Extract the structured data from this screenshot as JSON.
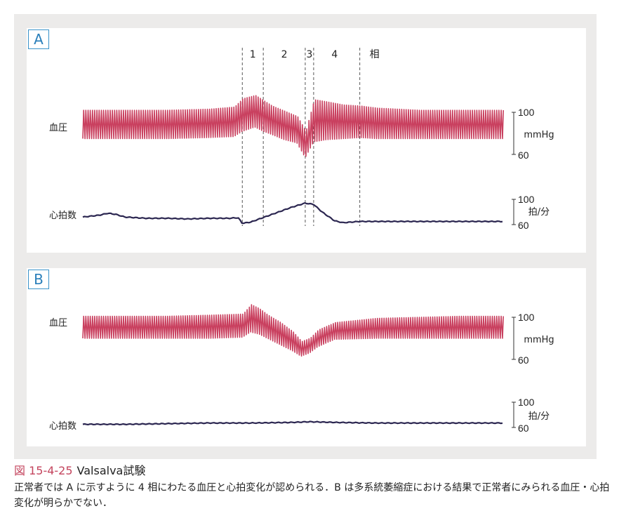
{
  "figure": {
    "number": "図 15-4-25",
    "title": "Valsalva試験",
    "caption": "正常者では A に示すように 4 相にわたる血圧と心拍変化が認められる．B は多系統萎縮症における結果で正常者にみられる血圧・心拍変化が明らかでない．"
  },
  "colors": {
    "bp_trace": "#c9405f",
    "hr_trace": "#2b2650",
    "accent": "#2a7fba",
    "caption_number": "#c4455e",
    "background": "#ecebea"
  },
  "chart_data": [
    {
      "type": "line",
      "panel": "A",
      "phase_labels": [
        "1",
        "2",
        "3",
        "4",
        "相"
      ],
      "phase_markers_x": [
        0.38,
        0.43,
        0.53,
        0.55,
        0.66
      ],
      "series": [
        {
          "name": "血圧",
          "units": "mmHg",
          "y_ticks": [
            "100",
            "60"
          ],
          "x": [
            0.0,
            0.1,
            0.2,
            0.3,
            0.36,
            0.38,
            0.41,
            0.43,
            0.45,
            0.48,
            0.51,
            0.53,
            0.55,
            0.58,
            0.62,
            0.66,
            0.7,
            0.8,
            0.9,
            1.0
          ],
          "systolic": [
            102,
            102,
            102,
            103,
            105,
            113,
            116,
            111,
            106,
            101,
            96,
            82,
            112,
            110,
            107,
            106,
            104,
            102,
            102,
            102
          ],
          "diastolic": [
            75,
            75,
            75,
            76,
            77,
            82,
            86,
            82,
            79,
            74,
            71,
            57,
            72,
            74,
            75,
            76,
            75,
            75,
            75,
            75
          ]
        },
        {
          "name": "心拍数",
          "units": "拍/分",
          "y_ticks": [
            "100",
            "60"
          ],
          "x": [
            0.0,
            0.04,
            0.06,
            0.08,
            0.1,
            0.15,
            0.2,
            0.25,
            0.3,
            0.35,
            0.37,
            0.38,
            0.4,
            0.45,
            0.5,
            0.53,
            0.55,
            0.57,
            0.6,
            0.62,
            0.66,
            0.7,
            0.8,
            0.9,
            1.0
          ],
          "values": [
            72,
            75,
            78,
            76,
            72,
            70,
            70,
            69,
            70,
            70,
            71,
            62,
            64,
            76,
            88,
            94,
            92,
            80,
            66,
            63,
            65,
            65,
            65,
            65,
            65
          ]
        }
      ]
    },
    {
      "type": "line",
      "panel": "B",
      "series": [
        {
          "name": "血圧",
          "units": "mmHg",
          "y_ticks": [
            "100",
            "60"
          ],
          "x": [
            0.0,
            0.1,
            0.2,
            0.3,
            0.38,
            0.4,
            0.42,
            0.44,
            0.47,
            0.5,
            0.52,
            0.54,
            0.56,
            0.6,
            0.7,
            0.8,
            0.9,
            1.0
          ],
          "systolic": [
            101,
            101,
            101,
            102,
            103,
            112,
            108,
            102,
            95,
            86,
            77,
            80,
            88,
            95,
            99,
            100,
            101,
            101
          ],
          "diastolic": [
            80,
            80,
            80,
            80,
            81,
            86,
            84,
            80,
            74,
            68,
            63,
            66,
            72,
            79,
            80,
            80,
            80,
            80
          ]
        },
        {
          "name": "心拍数",
          "units": "拍/分",
          "y_ticks": [
            "100",
            "60"
          ],
          "x": [
            0.0,
            0.1,
            0.2,
            0.3,
            0.4,
            0.5,
            0.54,
            0.6,
            0.7,
            0.8,
            0.9,
            1.0
          ],
          "values": [
            65,
            65,
            66,
            67,
            67,
            68,
            69,
            68,
            67,
            67,
            67,
            67
          ]
        }
      ]
    }
  ],
  "labels": {
    "panel_a": "A",
    "panel_b": "B",
    "bp_axis": "血圧",
    "hr_axis": "心拍数"
  }
}
